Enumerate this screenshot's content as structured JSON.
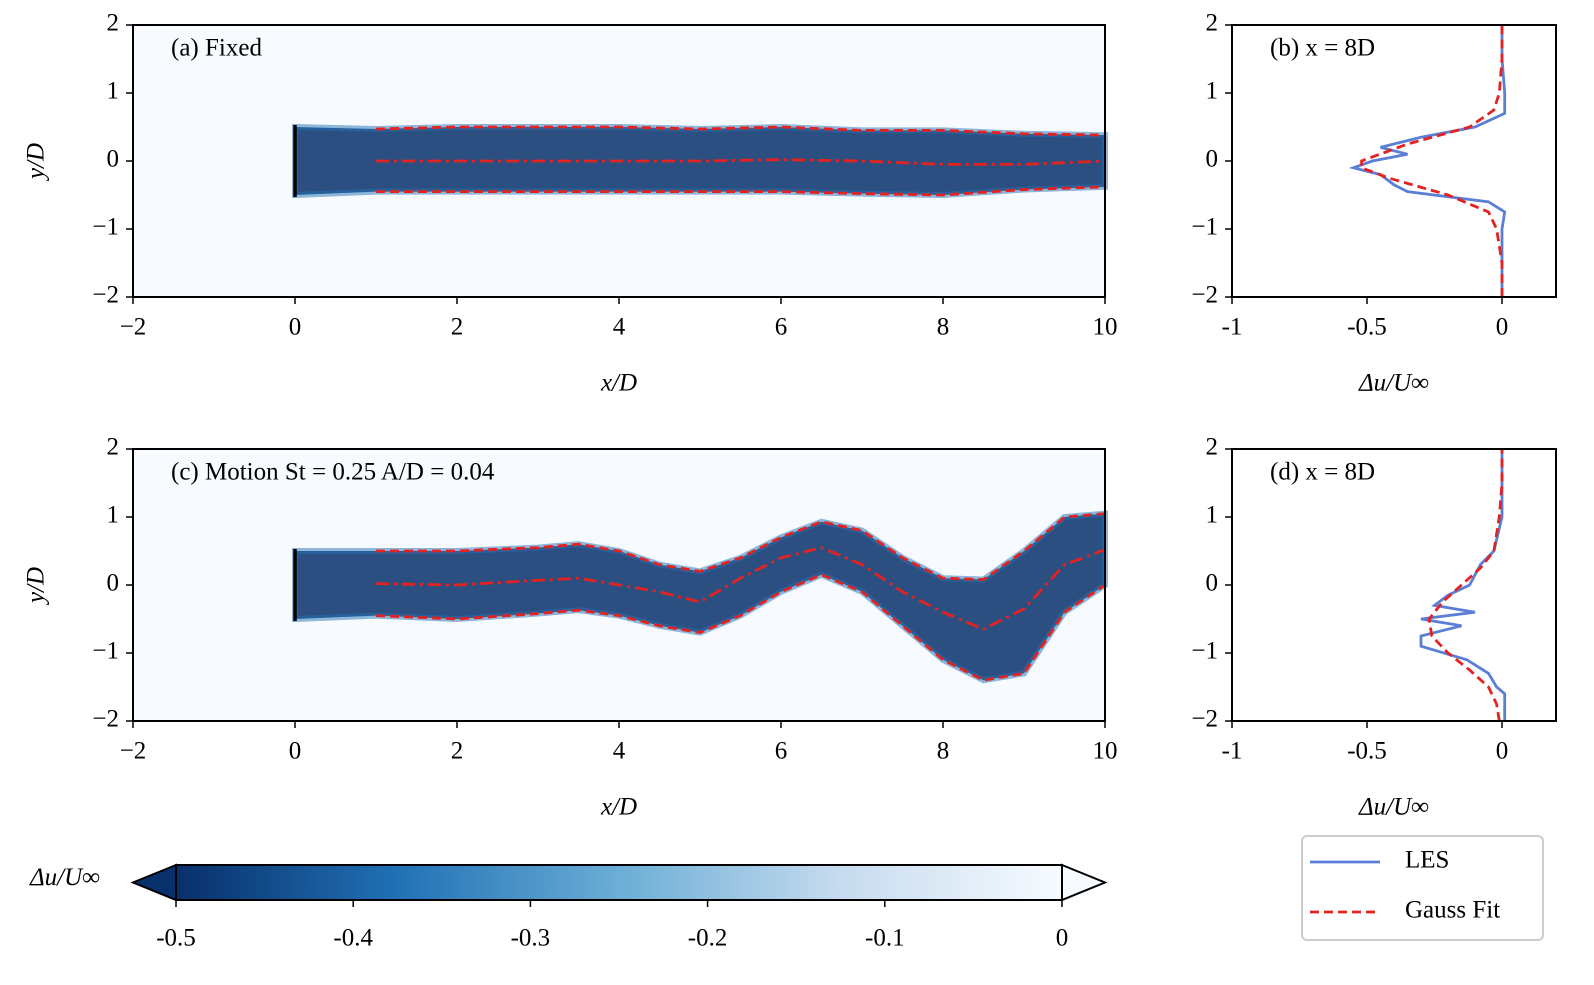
{
  "chart_data": [
    {
      "type": "wake",
      "annotation": "(a)  Fixed",
      "xlabel": "x/D",
      "ylabel": "y/D",
      "xlim": [
        -2,
        10
      ],
      "ylim": [
        -2,
        2
      ],
      "xticks": [
        {
          "value": -2,
          "label": "−2"
        },
        0,
        2,
        4,
        6,
        8,
        10
      ],
      "yticks": [
        {
          "value": -2,
          "label": "−2"
        },
        {
          "value": -1,
          "label": "−1"
        },
        0,
        1,
        2
      ],
      "x": [
        1,
        2,
        3,
        4,
        5,
        6,
        7,
        8,
        9,
        10
      ],
      "series": [
        {
          "color": "#e32222",
          "dash": "dashed",
          "values": [
            0.47,
            0.5,
            0.5,
            0.5,
            0.47,
            0.5,
            0.45,
            0.45,
            0.4,
            0.38
          ]
        },
        {
          "color": "#e32222",
          "dash": "dashdot",
          "values": [
            0,
            0,
            0,
            0,
            0,
            0.02,
            0,
            -0.05,
            -0.05,
            0
          ]
        },
        {
          "color": "#e32222",
          "dash": "dashed",
          "values": [
            -0.45,
            -0.45,
            -0.45,
            -0.45,
            -0.45,
            -0.45,
            -0.48,
            -0.5,
            -0.42,
            -0.38
          ]
        }
      ]
    },
    {
      "type": "profile",
      "annotation": "(b)  x = 8D",
      "xlabel": "Δu/U∞",
      "xlim": [
        -1,
        0.2
      ],
      "ylim": [
        -2,
        2
      ],
      "xticks": [
        -1,
        -0.5,
        0
      ],
      "yticks": [
        {
          "value": -2,
          "label": "−2"
        },
        {
          "value": -1,
          "label": "−1"
        },
        0,
        1,
        2
      ],
      "legend": "lower right",
      "series": [
        {
          "name": "LES",
          "color": "#5b7fd6",
          "dash": "solid",
          "y": [
            -2,
            -1.5,
            -1,
            -0.75,
            -0.6,
            -0.45,
            -0.35,
            -0.2,
            -0.1,
            0,
            0.1,
            0.2,
            0.35,
            0.5,
            0.7,
            1,
            1.5,
            2
          ],
          "values": [
            0,
            0,
            0,
            0.01,
            -0.05,
            -0.35,
            -0.4,
            -0.45,
            -0.55,
            -0.48,
            -0.35,
            -0.45,
            -0.3,
            -0.1,
            0.01,
            0.01,
            0,
            0
          ]
        },
        {
          "name": "Gauss Fit",
          "color": "#e32222",
          "dash": "dashed",
          "y": [
            -2,
            -1.5,
            -1,
            -0.75,
            -0.5,
            -0.25,
            -0.1,
            0,
            0.25,
            0.5,
            0.75,
            1,
            1.5,
            2
          ],
          "values": [
            0,
            0,
            -0.02,
            -0.05,
            -0.2,
            -0.42,
            -0.52,
            -0.52,
            -0.35,
            -0.12,
            -0.03,
            -0.01,
            0,
            0
          ]
        }
      ]
    },
    {
      "type": "wake",
      "annotation": "(c)  Motion St = 0.25  A/D = 0.04",
      "xlabel": "x/D",
      "ylabel": "y/D",
      "xlim": [
        -2,
        10
      ],
      "ylim": [
        -2,
        2
      ],
      "xticks": [
        {
          "value": -2,
          "label": "−2"
        },
        0,
        2,
        4,
        6,
        8,
        10
      ],
      "yticks": [
        {
          "value": -2,
          "label": "−2"
        },
        {
          "value": -1,
          "label": "−1"
        },
        0,
        1,
        2
      ],
      "x": [
        1,
        2,
        3,
        3.5,
        4,
        4.5,
        5,
        5.5,
        6,
        6.5,
        7,
        7.5,
        8,
        8.5,
        9,
        9.5,
        10
      ],
      "series": [
        {
          "color": "#e32222",
          "dash": "dashed",
          "values": [
            0.5,
            0.5,
            0.55,
            0.6,
            0.5,
            0.3,
            0.2,
            0.4,
            0.7,
            0.93,
            0.8,
            0.4,
            0.1,
            0.08,
            0.5,
            1.0,
            1.05
          ]
        },
        {
          "color": "#e32222",
          "dash": "dashdot",
          "values": [
            0.02,
            0,
            0.07,
            0.1,
            0,
            -0.1,
            -0.25,
            0.1,
            0.4,
            0.55,
            0.3,
            -0.1,
            -0.4,
            -0.65,
            -0.35,
            0.3,
            0.52
          ]
        },
        {
          "color": "#e32222",
          "dash": "dashed",
          "values": [
            -0.45,
            -0.5,
            -0.42,
            -0.37,
            -0.45,
            -0.6,
            -0.7,
            -0.45,
            -0.1,
            0.15,
            -0.1,
            -0.6,
            -1.1,
            -1.4,
            -1.3,
            -0.4,
            0
          ]
        }
      ]
    },
    {
      "type": "profile",
      "annotation": "(d)  x = 8D",
      "xlabel": "Δu/U∞",
      "xlim": [
        -1,
        0.2
      ],
      "ylim": [
        -2,
        2
      ],
      "xticks": [
        -1,
        -0.5,
        0
      ],
      "yticks": [
        {
          "value": -2,
          "label": "−2"
        },
        {
          "value": -1,
          "label": "−1"
        },
        0,
        1,
        2
      ],
      "series": [
        {
          "color": "#5b7fd6",
          "dash": "solid",
          "y": [
            -2,
            -1.6,
            -1.5,
            -1.3,
            -1.1,
            -0.9,
            -0.75,
            -0.6,
            -0.5,
            -0.4,
            -0.3,
            -0.15,
            0,
            0.3,
            0.5,
            1,
            2
          ],
          "values": [
            0.01,
            0.01,
            -0.02,
            -0.05,
            -0.13,
            -0.3,
            -0.3,
            -0.15,
            -0.3,
            -0.1,
            -0.25,
            -0.2,
            -0.12,
            -0.08,
            -0.03,
            0,
            0
          ]
        },
        {
          "color": "#e32222",
          "dash": "dashed",
          "y": [
            -2,
            -1.75,
            -1.5,
            -1.25,
            -1,
            -0.75,
            -0.5,
            -0.25,
            0,
            0.25,
            0.5,
            1,
            1.5,
            2
          ],
          "values": [
            -0.01,
            -0.02,
            -0.05,
            -0.12,
            -0.2,
            -0.26,
            -0.27,
            -0.22,
            -0.15,
            -0.08,
            -0.03,
            -0.01,
            0,
            0
          ]
        }
      ]
    },
    {
      "type": "colorbar",
      "label": "Δu/U∞",
      "xlim": [
        -0.5,
        0
      ],
      "xticks": [
        -0.5,
        -0.4,
        -0.3,
        -0.2,
        -0.1,
        0
      ],
      "colors": [
        "#08306b",
        "#2171b5",
        "#6baed6",
        "#c6dbef",
        "#f7fbff"
      ],
      "extend": "both"
    }
  ]
}
